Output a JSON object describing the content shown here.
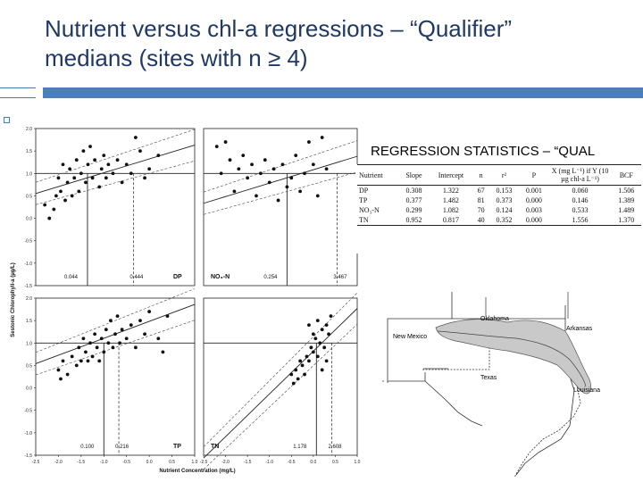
{
  "slide": {
    "title_line1": "Nutrient versus chl-a regressions – “Qualifier”",
    "title_line2": "medians (sites with n ≥ 4)",
    "accent_color": "#4a7ebb",
    "title_color": "#1f3864"
  },
  "chart_data": [
    {
      "type": "scatter",
      "panel_label": "DP",
      "ylabel": "Sestonic Chlorophyll-a (µg/L)",
      "xlim": [
        -2.5,
        1.0
      ],
      "ylim": [
        -1.5,
        2.0
      ],
      "reference_line_y": 1.0,
      "marked_x_labels": [
        "0.044",
        "0.444"
      ],
      "marked_x": [
        -1.36,
        -0.35
      ],
      "regression": {
        "slope": 0.308,
        "intercept": 1.322
      },
      "points": [
        [
          -2.3,
          0.3
        ],
        [
          -2.2,
          0.0
        ],
        [
          -2.1,
          0.2
        ],
        [
          -2.05,
          0.5
        ],
        [
          -2.0,
          0.9
        ],
        [
          -1.95,
          0.6
        ],
        [
          -1.9,
          1.2
        ],
        [
          -1.85,
          0.4
        ],
        [
          -1.8,
          0.8
        ],
        [
          -1.75,
          1.1
        ],
        [
          -1.7,
          0.5
        ],
        [
          -1.65,
          0.9
        ],
        [
          -1.6,
          1.3
        ],
        [
          -1.55,
          0.6
        ],
        [
          -1.5,
          1.0
        ],
        [
          -1.45,
          1.5
        ],
        [
          -1.4,
          0.8
        ],
        [
          -1.35,
          1.2
        ],
        [
          -1.3,
          1.6
        ],
        [
          -1.25,
          0.9
        ],
        [
          -1.2,
          1.3
        ],
        [
          -1.1,
          0.7
        ],
        [
          -1.05,
          1.1
        ],
        [
          -1.0,
          1.4
        ],
        [
          -0.95,
          0.9
        ],
        [
          -0.9,
          1.2
        ],
        [
          -0.8,
          1.0
        ],
        [
          -0.7,
          1.3
        ],
        [
          -0.6,
          0.8
        ],
        [
          -0.5,
          1.2
        ],
        [
          -0.4,
          1.0
        ],
        [
          -0.3,
          1.8
        ],
        [
          -0.2,
          1.5
        ],
        [
          -0.1,
          0.9
        ],
        [
          0.0,
          1.1
        ],
        [
          0.2,
          1.4
        ]
      ]
    },
    {
      "type": "scatter",
      "panel_label": "NO₃-N",
      "xlim": [
        -2.5,
        1.0
      ],
      "ylim": [
        -1.5,
        2.0
      ],
      "reference_line_y": 1.0,
      "marked_x_labels": [
        "0.254",
        "3.467"
      ],
      "marked_x": [
        -0.6,
        0.54
      ],
      "regression": {
        "slope": 0.299,
        "intercept": 1.082
      },
      "points": [
        [
          -2.2,
          1.6
        ],
        [
          -2.1,
          1.0
        ],
        [
          -2.0,
          1.7
        ],
        [
          -1.9,
          1.3
        ],
        [
          -1.8,
          0.6
        ],
        [
          -1.7,
          1.1
        ],
        [
          -1.6,
          1.4
        ],
        [
          -1.5,
          0.9
        ],
        [
          -1.4,
          1.2
        ],
        [
          -1.3,
          0.5
        ],
        [
          -1.2,
          1.0
        ],
        [
          -1.1,
          1.3
        ],
        [
          -1.0,
          0.8
        ],
        [
          -0.9,
          1.1
        ],
        [
          -0.8,
          0.4
        ],
        [
          -0.7,
          1.2
        ],
        [
          -0.6,
          0.7
        ],
        [
          -0.5,
          0.9
        ],
        [
          -0.4,
          1.4
        ],
        [
          -0.3,
          0.6
        ],
        [
          -0.2,
          1.0
        ],
        [
          -0.1,
          1.7
        ],
        [
          0.0,
          1.2
        ],
        [
          0.1,
          0.5
        ],
        [
          0.2,
          1.8
        ],
        [
          0.3,
          1.1
        ]
      ]
    },
    {
      "type": "scatter",
      "panel_label": "TP",
      "xlim": [
        -2.5,
        1.0
      ],
      "ylim": [
        -1.5,
        2.0
      ],
      "reference_line_y": 1.0,
      "marked_x_labels": [
        "0.100",
        "0.216"
      ],
      "marked_x": [
        -1.0,
        -0.67
      ],
      "regression": {
        "slope": 0.377,
        "intercept": 1.482
      },
      "points": [
        [
          -2.0,
          0.4
        ],
        [
          -1.95,
          0.2
        ],
        [
          -1.9,
          0.6
        ],
        [
          -1.8,
          0.3
        ],
        [
          -1.7,
          0.7
        ],
        [
          -1.6,
          0.5
        ],
        [
          -1.55,
          0.9
        ],
        [
          -1.5,
          0.6
        ],
        [
          -1.45,
          1.1
        ],
        [
          -1.4,
          0.8
        ],
        [
          -1.35,
          0.6
        ],
        [
          -1.3,
          1.0
        ],
        [
          -1.25,
          0.7
        ],
        [
          -1.2,
          1.2
        ],
        [
          -1.15,
          0.9
        ],
        [
          -1.1,
          0.6
        ],
        [
          -1.05,
          1.1
        ],
        [
          -1.0,
          0.8
        ],
        [
          -0.95,
          1.3
        ],
        [
          -0.9,
          1.0
        ],
        [
          -0.85,
          1.5
        ],
        [
          -0.8,
          0.9
        ],
        [
          -0.75,
          1.2
        ],
        [
          -0.7,
          1.6
        ],
        [
          -0.65,
          1.0
        ],
        [
          -0.6,
          1.3
        ],
        [
          -0.5,
          1.1
        ],
        [
          -0.4,
          1.4
        ],
        [
          -0.3,
          0.9
        ],
        [
          -0.2,
          1.5
        ],
        [
          -0.1,
          1.2
        ],
        [
          0.0,
          1.7
        ],
        [
          0.2,
          1.1
        ],
        [
          0.3,
          0.8
        ],
        [
          0.4,
          1.6
        ]
      ]
    },
    {
      "type": "scatter",
      "panel_label": "TN",
      "xlabel": "Nutrient Concentration (mg/L)",
      "xlim": [
        -2.5,
        1.0
      ],
      "ylim": [
        -1.5,
        2.0
      ],
      "reference_line_y": 1.0,
      "marked_x_labels": [
        "1.178",
        "2.608"
      ],
      "marked_x": [
        0.07,
        0.42
      ],
      "regression": {
        "slope": 0.952,
        "intercept": 0.817
      },
      "points": [
        [
          -0.5,
          0.3
        ],
        [
          -0.45,
          0.1
        ],
        [
          -0.4,
          0.4
        ],
        [
          -0.35,
          0.2
        ],
        [
          -0.3,
          0.6
        ],
        [
          -0.25,
          0.5
        ],
        [
          -0.2,
          0.3
        ],
        [
          -0.15,
          0.7
        ],
        [
          -0.1,
          0.6
        ],
        [
          -0.05,
          0.9
        ],
        [
          0.0,
          0.8
        ],
        [
          0.05,
          1.1
        ],
        [
          0.1,
          0.7
        ],
        [
          0.15,
          1.0
        ],
        [
          0.2,
          1.3
        ],
        [
          0.25,
          0.9
        ],
        [
          0.3,
          1.4
        ],
        [
          0.35,
          1.2
        ],
        [
          0.4,
          1.6
        ],
        [
          0.1,
          1.5
        ],
        [
          0.0,
          1.2
        ],
        [
          -0.1,
          1.4
        ],
        [
          0.2,
          0.4
        ],
        [
          0.3,
          0.6
        ]
      ]
    }
  ],
  "axis_ticks": {
    "y": [
      "2.0",
      "1.5",
      "1.0",
      "0.5",
      "0.0",
      "-0.5",
      "-1.0",
      "-1.5"
    ],
    "x": [
      "-2.5",
      "-2.0",
      "-1.5",
      "-1.0",
      "-0.5",
      "0.0",
      "0.5",
      "1.0"
    ]
  },
  "regression_table": {
    "heading": "REGRESSION STATISTICS – “QUAL",
    "columns": [
      "Nutrient",
      "Slope",
      "Intercept",
      "n",
      "r²",
      "P",
      "X (mg L⁻¹) if Y (10 µg chl-a L⁻¹)",
      "BCF"
    ],
    "rows": [
      [
        "DP",
        "0.308",
        "1.322",
        "67",
        "0.153",
        "0.001",
        "0.060",
        "1.506"
      ],
      [
        "TP",
        "0.377",
        "1.482",
        "81",
        "0.373",
        "0.000",
        "0.146",
        "1.389"
      ],
      [
        "NO₃-N",
        "0.299",
        "1.082",
        "70",
        "0.124",
        "0.003",
        "0.533",
        "1.489"
      ],
      [
        "TN",
        "0.952",
        "0.817",
        "40",
        "0.352",
        "0.000",
        "1.556",
        "1.370"
      ]
    ]
  },
  "map": {
    "labels": [
      "Oklahoma",
      "Arkansas",
      "New Mexico",
      "Texas",
      "Louisiana"
    ]
  }
}
